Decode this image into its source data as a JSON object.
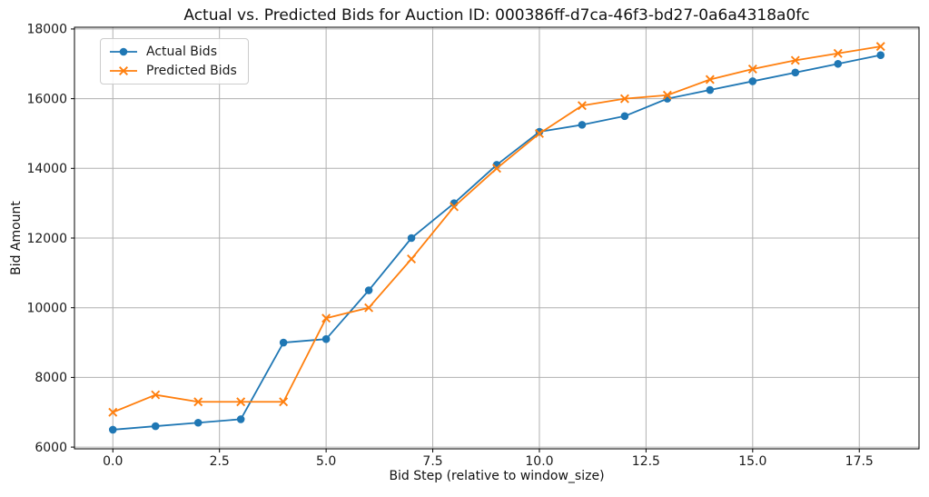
{
  "chart_data": {
    "type": "line",
    "title": "Actual vs. Predicted Bids for Auction ID: 000386ff-d7ca-46f3-bd27-0a6a4318a0fc",
    "xlabel": "Bid Step (relative to window_size)",
    "ylabel": "Bid Amount",
    "x": [
      0,
      1,
      2,
      3,
      4,
      5,
      6,
      7,
      8,
      9,
      10,
      11,
      12,
      13,
      14,
      15,
      16,
      17,
      18
    ],
    "series": [
      {
        "name": "Actual Bids",
        "color": "#1f77b4",
        "marker": "circle",
        "values": [
          6500,
          6600,
          6700,
          6800,
          9000,
          9100,
          10500,
          12000,
          13000,
          14100,
          15050,
          15250,
          15500,
          16000,
          16250,
          16500,
          16750,
          17000,
          17250
        ]
      },
      {
        "name": "Predicted Bids",
        "color": "#ff7f0e",
        "marker": "x",
        "values": [
          7000,
          7500,
          7300,
          7300,
          7300,
          9700,
          10000,
          11400,
          12900,
          14000,
          15000,
          15800,
          16000,
          16100,
          16550,
          16850,
          17100,
          17300,
          17500
        ]
      }
    ],
    "xlim": [
      -0.9,
      18.9
    ],
    "ylim": [
      5950,
      18050
    ],
    "xticks": [
      0,
      2.5,
      5,
      7.5,
      10,
      12.5,
      15,
      17.5
    ],
    "xtick_labels": [
      "0.0",
      "2.5",
      "5.0",
      "7.5",
      "10.0",
      "12.5",
      "15.0",
      "17.5"
    ],
    "yticks": [
      6000,
      8000,
      10000,
      12000,
      14000,
      16000,
      18000
    ],
    "ytick_labels": [
      "6000",
      "8000",
      "10000",
      "12000",
      "14000",
      "16000",
      "18000"
    ],
    "grid": true,
    "legend_position": "upper left",
    "colors": {
      "grid": "#b0b0b0",
      "axis": "#000000",
      "text": "#1a1a1a",
      "background": "#ffffff"
    }
  }
}
